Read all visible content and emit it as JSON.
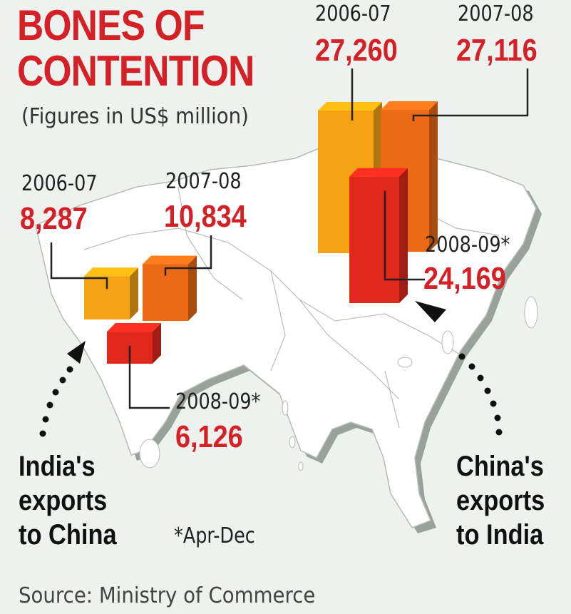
{
  "title_line1": "BONES OF",
  "title_line2": "CONTENTION",
  "subtitle": "(Figures in US$ million)",
  "source": "Source: Ministry of Commerce",
  "footnote": "*Apr-Dec",
  "colors": {
    "accent": "#d42027",
    "bar_2006_07": "#f6a313",
    "bar_2007_08": "#ec6a16",
    "bar_2008_09": "#e0281c",
    "map_land": "#ffffff",
    "background": "#eef2ee"
  },
  "chart_data": [
    {
      "type": "bar",
      "caption": [
        "India's",
        "exports",
        "to China"
      ],
      "categories": [
        "2006-07",
        "2007-08",
        "2008-09*"
      ],
      "values": [
        8287,
        10834,
        6126
      ],
      "value_labels": [
        "8,287",
        "10,834",
        "6,126"
      ],
      "unit": "US$ million"
    },
    {
      "type": "bar",
      "caption": [
        "China's",
        "exports",
        "to India"
      ],
      "categories": [
        "2006-07",
        "2007-08",
        "2008-09*"
      ],
      "values": [
        27260,
        27116,
        24169
      ],
      "value_labels": [
        "27,260",
        "27,116",
        "24,169"
      ],
      "unit": "US$ million"
    }
  ]
}
